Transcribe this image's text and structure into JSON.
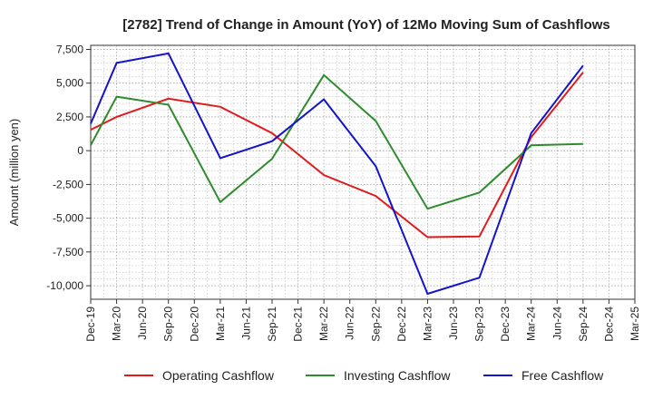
{
  "chart_data": {
    "type": "line",
    "title": "[2782]  Trend of Change in Amount (YoY) of 12Mo Moving Sum of Cashflows",
    "xlabel": "",
    "ylabel": "Amount (million yen)",
    "ylim": [
      -11000,
      7800
    ],
    "yticks": [
      7500,
      5000,
      2500,
      0,
      -2500,
      -5000,
      -7500,
      -10000
    ],
    "ytick_labels": [
      "7,500",
      "5,000",
      "2,500",
      "0",
      "-2,500",
      "-5,000",
      "-7,500",
      "-10,000"
    ],
    "categories": [
      "Dec-19",
      "Mar-20",
      "Jun-20",
      "Sep-20",
      "Dec-20",
      "Mar-21",
      "Jun-21",
      "Sep-21",
      "Dec-21",
      "Mar-22",
      "Jun-22",
      "Sep-22",
      "Dec-22",
      "Mar-23",
      "Jun-23",
      "Sep-23",
      "Dec-23",
      "Mar-24",
      "Jun-24",
      "Sep-24",
      "Dec-24",
      "Mar-25"
    ],
    "grid": true,
    "legend_position": "bottom",
    "series": [
      {
        "name": "Operating Cashflow",
        "color": "#e31a1c",
        "points": [
          [
            0,
            1550
          ],
          [
            1,
            2500
          ],
          [
            3,
            3850
          ],
          [
            5,
            3250
          ],
          [
            7,
            1300
          ],
          [
            9,
            -1800
          ],
          [
            11,
            -3350
          ],
          [
            13,
            -6400
          ],
          [
            15,
            -6350
          ],
          [
            17,
            1000
          ],
          [
            19,
            5800
          ]
        ]
      },
      {
        "name": "Investing Cashflow",
        "color": "#2e8b2e",
        "points": [
          [
            0,
            400
          ],
          [
            1,
            4000
          ],
          [
            3,
            3400
          ],
          [
            5,
            -3800
          ],
          [
            7,
            -600
          ],
          [
            9,
            5600
          ],
          [
            11,
            2200
          ],
          [
            13,
            -4300
          ],
          [
            15,
            -3100
          ],
          [
            17,
            400
          ],
          [
            19,
            500
          ]
        ]
      },
      {
        "name": "Free Cashflow",
        "color": "#1414c8",
        "points": [
          [
            0,
            2000
          ],
          [
            1,
            6500
          ],
          [
            3,
            7200
          ],
          [
            5,
            -550
          ],
          [
            7,
            700
          ],
          [
            9,
            3800
          ],
          [
            11,
            -1150
          ],
          [
            13,
            -10600
          ],
          [
            15,
            -9400
          ],
          [
            17,
            1300
          ],
          [
            19,
            6300
          ]
        ]
      }
    ]
  }
}
